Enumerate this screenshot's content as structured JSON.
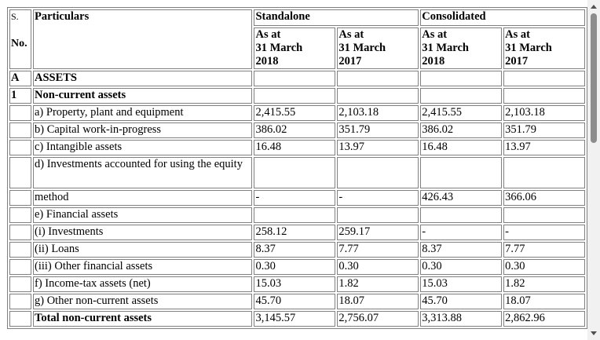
{
  "header": {
    "sno_line1": "S.",
    "sno_line2": "No.",
    "particulars": "Particulars",
    "standalone": "Standalone",
    "consolidated": "Consolidated",
    "col_2018": [
      "As at",
      "31 March",
      "2018"
    ],
    "col_2017": [
      "As at",
      "31 March",
      "2017"
    ]
  },
  "rows": [
    {
      "sno": "A",
      "particular": "ASSETS",
      "bold": true,
      "v": [
        "",
        "",
        "",
        ""
      ]
    },
    {
      "sno": "1",
      "particular": "Non-current assets",
      "bold": true,
      "v": [
        "",
        "",
        "",
        ""
      ]
    },
    {
      "sno": "",
      "particular": "a) Property, plant and equipment",
      "v": [
        "2,415.55",
        "2,103.18",
        "2,415.55",
        "2,103.18"
      ]
    },
    {
      "sno": "",
      "particular": "b) Capital work-in-progress",
      "v": [
        "386.02",
        "351.79",
        "386.02",
        "351.79"
      ]
    },
    {
      "sno": "",
      "particular": "c) Intangible assets",
      "v": [
        "16.48",
        "13.97",
        "16.48",
        "13.97"
      ]
    },
    {
      "sno": "",
      "particular": "d) Investments accounted for using the equity",
      "tall": true,
      "v": [
        "",
        "",
        "",
        ""
      ]
    },
    {
      "sno": "",
      "particular": "method",
      "v": [
        "-",
        "-",
        "426.43",
        "366.06"
      ]
    },
    {
      "sno": "",
      "particular": "e) Financial assets",
      "v": [
        "",
        "",
        "",
        ""
      ]
    },
    {
      "sno": "",
      "particular": "(i) Investments",
      "v": [
        "258.12",
        "259.17",
        "-",
        "-"
      ]
    },
    {
      "sno": "",
      "particular": "(ii) Loans",
      "v": [
        "8.37",
        "7.77",
        "8.37",
        "7.77"
      ]
    },
    {
      "sno": "",
      "particular": "(iii) Other financial assets",
      "v": [
        "0.30",
        "0.30",
        "0.30",
        "0.30"
      ]
    },
    {
      "sno": "",
      "particular": "f) Income-tax assets (net)",
      "v": [
        "15.03",
        "1.82",
        "15.03",
        "1.82"
      ]
    },
    {
      "sno": "",
      "particular": "g) Other non-current assets",
      "v": [
        "45.70",
        "18.07",
        "45.70",
        "18.07"
      ]
    },
    {
      "sno": "",
      "particular": "Total non-current assets",
      "bold": true,
      "v": [
        "3,145.57",
        "2,756.07",
        "3,313.88",
        "2,862.96"
      ]
    }
  ]
}
